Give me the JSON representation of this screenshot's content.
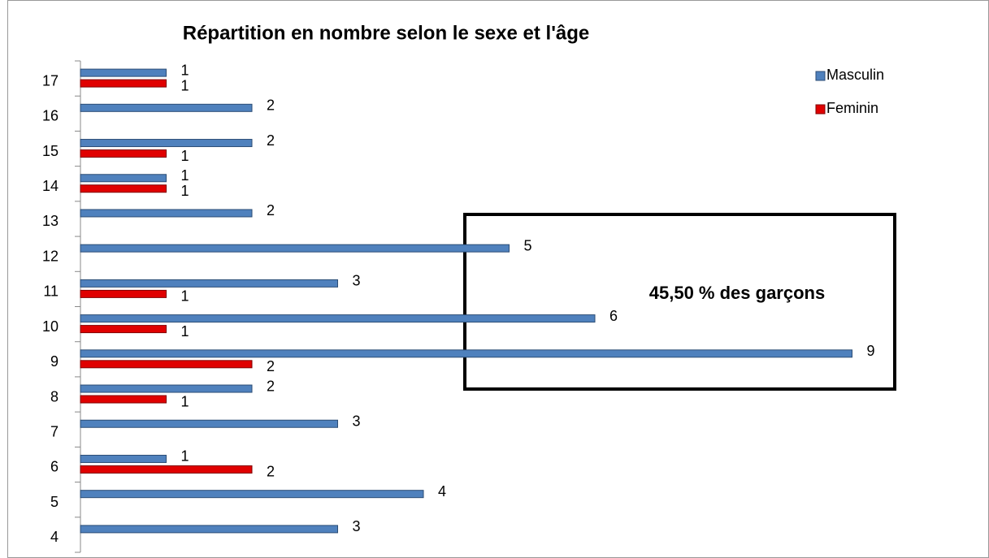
{
  "chart_data": {
    "type": "bar",
    "orientation": "horizontal",
    "title": "Répartition en nombre selon le sexe et l'âge",
    "categories": [
      "4",
      "5",
      "6",
      "7",
      "8",
      "9",
      "10",
      "11",
      "12",
      "13",
      "14",
      "15",
      "16",
      "17"
    ],
    "series": [
      {
        "name": "Masculin",
        "color": "#4f81bd",
        "values": [
          3,
          4,
          1,
          3,
          2,
          9,
          6,
          3,
          5,
          2,
          1,
          2,
          2,
          1
        ]
      },
      {
        "name": "Feminin",
        "color": "#e00000",
        "values": [
          null,
          null,
          2,
          null,
          1,
          2,
          1,
          1,
          null,
          null,
          1,
          1,
          null,
          1
        ]
      }
    ],
    "annotation": "45,50 % des garçons",
    "legend": "top-right"
  }
}
